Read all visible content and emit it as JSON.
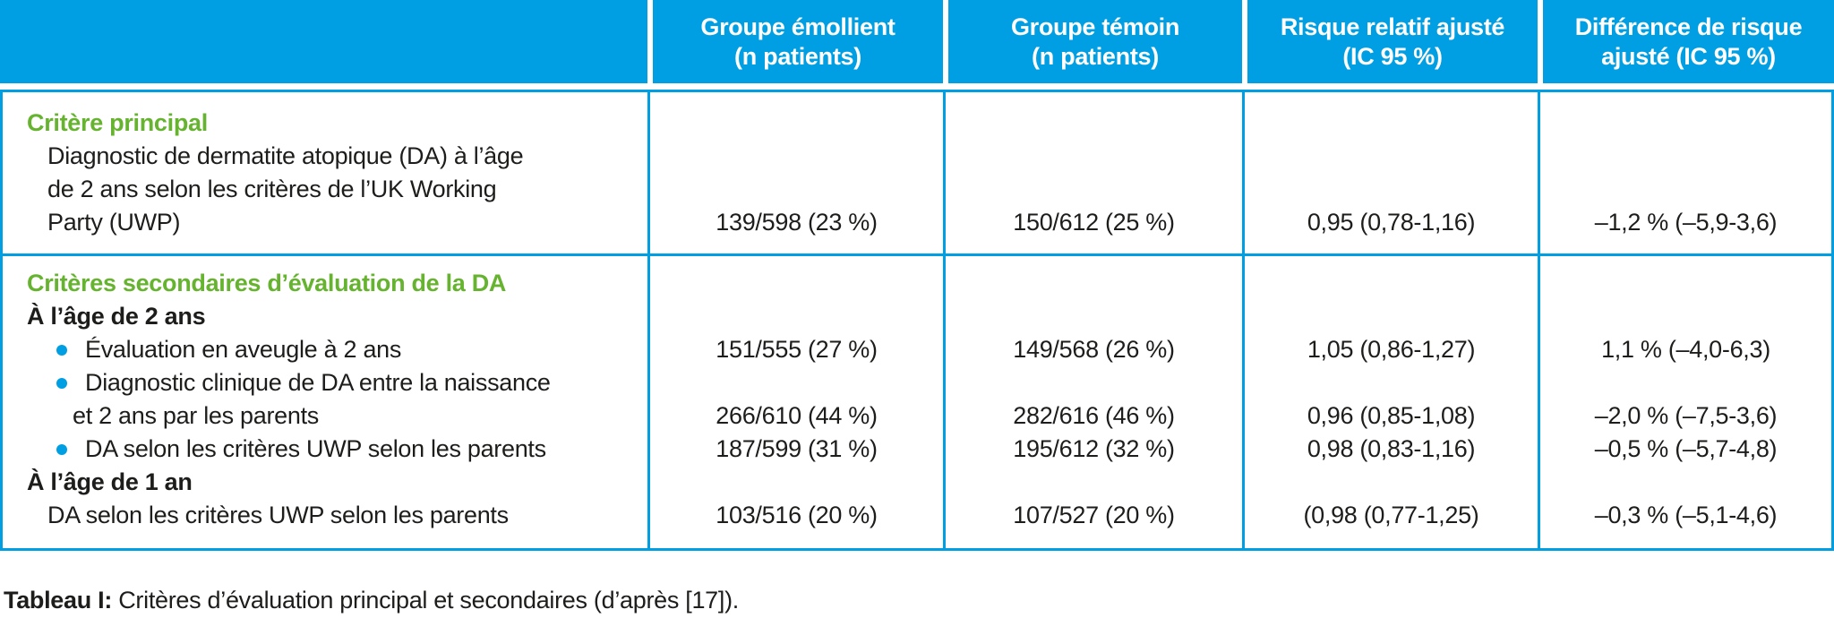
{
  "colors": {
    "accent_cyan": "#009FE3",
    "accent_green": "#65B32E",
    "text": "#1d1d1b"
  },
  "header": {
    "cols": [
      {
        "line1": "Groupe émollient",
        "line2": "(n patients)"
      },
      {
        "line1": "Groupe témoin",
        "line2": "(n patients)"
      },
      {
        "line1": "Risque relatif ajusté",
        "line2": "(IC 95 %)"
      },
      {
        "line1": "Différence de risque",
        "line2": "ajusté (IC 95 %)"
      }
    ]
  },
  "sections": [
    {
      "title": "Critère principal",
      "rows": [
        {
          "lines": [
            "Diagnostic de dermatite atopique (DA) à l’âge",
            "de 2 ans selon les critères de l’UK Working",
            "Party (UWP)"
          ],
          "values": [
            "139/598 (23 %)",
            "150/612 (25 %)",
            "0,95 (0,78-1,16)",
            "–1,2 % (–5,9-3,6)"
          ]
        }
      ]
    },
    {
      "title": "Critères secondaires d’évaluation de la DA",
      "subheading_2ans": "À l’âge de 2 ans",
      "subheading_1an": "À l’âge de 1 an",
      "rows": [
        {
          "lines": [
            "Évaluation en aveugle à 2 ans"
          ],
          "values": [
            "151/555 (27 %)",
            "149/568 (26 %)",
            "1,05 (0,86-1,27)",
            "1,1 % (–4,0-6,3)"
          ]
        },
        {
          "lines": [
            "Diagnostic clinique de DA entre la naissance",
            "et 2 ans par les parents"
          ],
          "values": [
            "266/610 (44 %)",
            "282/616 (46 %)",
            "0,96 (0,85-1,08)",
            "–2,0 % (–7,5-3,6)"
          ]
        },
        {
          "lines": [
            "DA selon les critères UWP selon les parents"
          ],
          "values": [
            "187/599 (31 %)",
            "195/612 (32 %)",
            "0,98 (0,83-1,16)",
            "–0,5 % (–5,7-4,8)"
          ]
        },
        {
          "lines": [
            "DA selon les critères UWP selon les parents"
          ],
          "values": [
            "103/516 (20 %)",
            "107/527 (20 %)",
            "(0,98 (0,77-1,25)",
            "–0,3 % (–5,1-4,6)"
          ]
        }
      ]
    }
  ],
  "caption": {
    "label": "Tableau I:",
    "text": " Critères d’évaluation principal et secondaires (d’après [17])."
  }
}
